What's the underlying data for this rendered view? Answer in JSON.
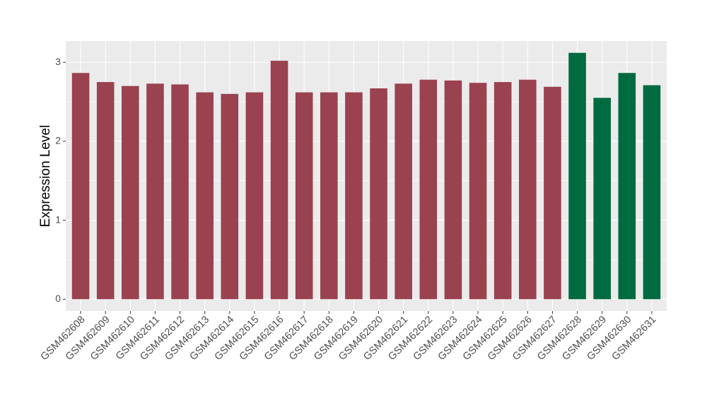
{
  "chart_data": {
    "type": "bar",
    "y_label": "Expression Level",
    "categories": [
      "GSM462608",
      "GSM462609",
      "GSM462610",
      "GSM462611",
      "GSM462612",
      "GSM462613",
      "GSM462614",
      "GSM462615",
      "GSM462616",
      "GSM462617",
      "GSM462618",
      "GSM462619",
      "GSM462620",
      "GSM462621",
      "GSM462622",
      "GSM462623",
      "GSM462624",
      "GSM462625",
      "GSM462626",
      "GSM462627",
      "GSM462628",
      "GSM462629",
      "GSM462630",
      "GSM462631"
    ],
    "values": [
      2.865,
      2.75,
      2.7,
      2.73,
      2.72,
      2.62,
      2.6,
      2.62,
      3.02,
      2.62,
      2.62,
      2.62,
      2.67,
      2.73,
      2.78,
      2.77,
      2.74,
      2.75,
      2.78,
      2.69,
      3.12,
      2.55,
      2.865,
      2.71
    ],
    "colors": [
      "#9a4250",
      "#9a4250",
      "#9a4250",
      "#9a4250",
      "#9a4250",
      "#9a4250",
      "#9a4250",
      "#9a4250",
      "#9a4250",
      "#9a4250",
      "#9a4250",
      "#9a4250",
      "#9a4250",
      "#9a4250",
      "#9a4250",
      "#9a4250",
      "#9a4250",
      "#9a4250",
      "#9a4250",
      "#9a4250",
      "#006a40",
      "#006a40",
      "#006a40",
      "#006a40"
    ],
    "ylim": [
      -0.15,
      3.27
    ],
    "yticks": [
      0,
      1,
      2,
      3
    ],
    "grid": true
  }
}
